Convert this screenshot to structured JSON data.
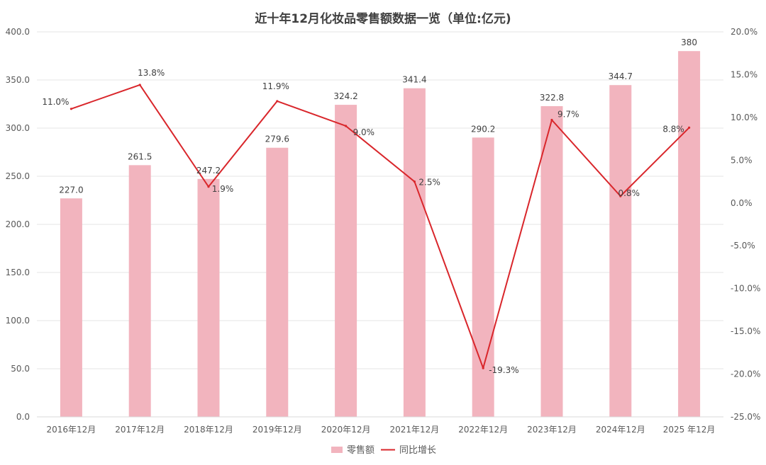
{
  "chart_data": {
    "type": "bar",
    "title": "近十年12月化妆品零售额数据一览（单位:亿元)",
    "categories": [
      "2016年12月",
      "2017年12月",
      "2018年12月",
      "2019年12月",
      "2020年12月",
      "2021年12月",
      "2022年12月",
      "2023年12月",
      "2024年12月",
      "2025 年12月"
    ],
    "series": [
      {
        "name": "零售额",
        "kind": "bar",
        "axis": "left",
        "color": "#f2b4be",
        "values": [
          227.0,
          261.5,
          247.2,
          279.6,
          324.2,
          341.4,
          290.2,
          322.8,
          344.7,
          380
        ],
        "labels": [
          "227.0",
          "261.5",
          "247.2",
          "279.6",
          "324.2",
          "341.4",
          "290.2",
          "322.8",
          "344.7",
          "380"
        ]
      },
      {
        "name": "同比增长",
        "kind": "line",
        "axis": "right",
        "color": "#d9262b",
        "values": [
          11.0,
          13.8,
          1.9,
          11.9,
          9.0,
          2.5,
          -19.3,
          9.7,
          0.8,
          8.8
        ],
        "labels": [
          "11.0%",
          "13.8%",
          "1.9%",
          "11.9%",
          "9.0%",
          "2.5%",
          "-19.3%",
          "9.7%",
          "0.8%",
          "8.8%"
        ]
      }
    ],
    "y_left": {
      "ylim": [
        0,
        400
      ],
      "ticks": [
        "0.0",
        "50.0",
        "100.0",
        "150.0",
        "200.0",
        "250.0",
        "300.0",
        "350.0",
        "400.0"
      ]
    },
    "y_right": {
      "ylim": [
        -25,
        20
      ],
      "ticks": [
        "-25.0%",
        "-20.0%",
        "-15.0%",
        "-10.0%",
        "-5.0%",
        "0.0%",
        "5.0%",
        "10.0%",
        "15.0%",
        "20.0%"
      ]
    },
    "grid": true,
    "legend_position": "bottom"
  }
}
